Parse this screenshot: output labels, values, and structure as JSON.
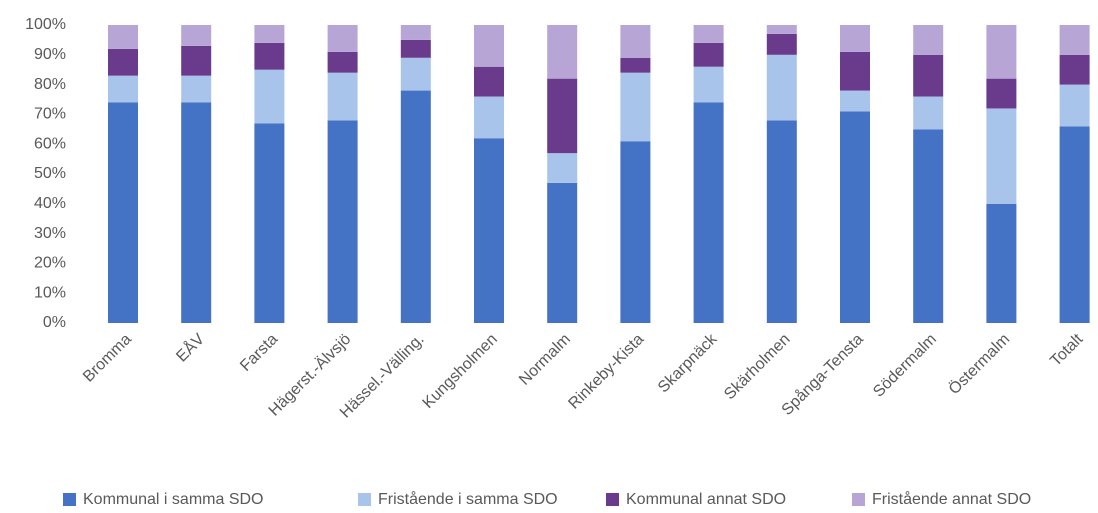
{
  "chart_data": {
    "type": "bar",
    "stacked": true,
    "categories": [
      "Bromma",
      "EÅV",
      "Farsta",
      "Hägerst.-Älvsjö",
      "Hässel.-Välling.",
      "Kungsholmen",
      "Normalm",
      "Rinkeby-Kista",
      "Skarpnäck",
      "Skärholmen",
      "Spånga-Tensta",
      "Södermalm",
      "Östermalm",
      "Totalt"
    ],
    "series": [
      {
        "name": "Kommunal i samma SDO",
        "color": "#4472c4",
        "values": [
          74,
          74,
          67,
          68,
          78,
          62,
          47,
          61,
          74,
          68,
          71,
          65,
          40,
          66
        ]
      },
      {
        "name": "Fristående i samma SDO",
        "color": "#a9c4eb",
        "values": [
          9,
          9,
          18,
          16,
          11,
          14,
          10,
          23,
          12,
          22,
          7,
          11,
          32,
          14
        ]
      },
      {
        "name": "Kommunal annat SDO",
        "color": "#6a3a8c",
        "values": [
          9,
          10,
          9,
          7,
          6,
          10,
          25,
          5,
          8,
          7,
          13,
          14,
          10,
          10
        ]
      },
      {
        "name": "Fristående annat SDO",
        "color": "#b7a6d5",
        "values": [
          8,
          7,
          6,
          9,
          5,
          14,
          18,
          11,
          6,
          3,
          9,
          10,
          18,
          10
        ]
      }
    ],
    "ylim": [
      0,
      100
    ],
    "yticks": [
      {
        "value": 0,
        "label": "0%"
      },
      {
        "value": 10,
        "label": "10%"
      },
      {
        "value": 20,
        "label": "20%"
      },
      {
        "value": 30,
        "label": "30%"
      },
      {
        "value": 40,
        "label": "40%"
      },
      {
        "value": 50,
        "label": "50%"
      },
      {
        "value": 60,
        "label": "60%"
      },
      {
        "value": 70,
        "label": "70%"
      },
      {
        "value": 80,
        "label": "80%"
      },
      {
        "value": 90,
        "label": "90%"
      },
      {
        "value": 100,
        "label": "100%"
      }
    ],
    "legend": "bottom"
  }
}
